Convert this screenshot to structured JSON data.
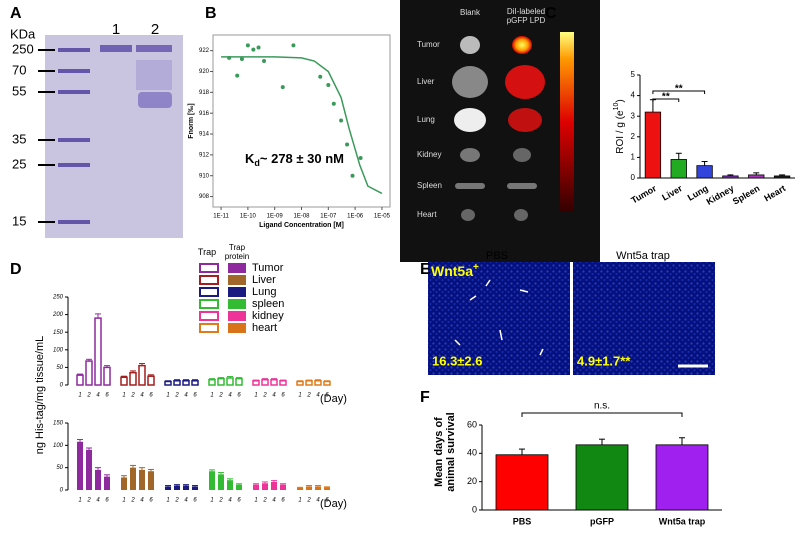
{
  "panel_labels": [
    "A",
    "B",
    "C",
    "D",
    "E",
    "F"
  ],
  "gel": {
    "unit": "KDa",
    "lanes": [
      "1",
      "2"
    ],
    "markers": [
      250,
      70,
      55,
      35,
      25,
      15
    ]
  },
  "imaging": {
    "columns": [
      "Blank",
      "DiI-labeled pGFP LPD"
    ],
    "organs": [
      "Tumor",
      "Liver",
      "Lung",
      "Kidney",
      "Spleen",
      "Heart"
    ]
  },
  "microscopy": {
    "marker": [
      "Wnt5a",
      "+"
    ],
    "groups": [
      "PBS",
      "Wnt5a trap"
    ],
    "values": [
      "16.3±2.6",
      "4.9±1.7**"
    ]
  },
  "d_legend": {
    "headers": [
      "Trap",
      "Trap protein"
    ]
  },
  "chart_data": [
    {
      "type": "scatter",
      "ylabel": "Fnorm [‰]",
      "xlabel": "Ligand Concentration [M]",
      "xlog": true,
      "annotation": [
        "K",
        "d",
        "~ 278 ± 30 nM"
      ],
      "color": "#3a9a5a",
      "xlim": [
        5e-12,
        2e-05
      ],
      "xticks": [
        {
          "value": 1e-11,
          "label": "1E-11"
        },
        {
          "value": 1e-10,
          "label": "1E-10"
        },
        {
          "value": 1e-09,
          "label": "1E-09"
        },
        {
          "value": 1e-08,
          "label": "1E-08"
        },
        {
          "value": 1e-07,
          "label": "1E-07"
        },
        {
          "value": 1e-06,
          "label": "1E-06"
        },
        {
          "value": 1e-05,
          "label": "1E-05"
        }
      ],
      "ylim": [
        907,
        923.5
      ],
      "yticks": [
        908,
        910,
        912,
        914,
        916,
        918,
        920,
        922
      ],
      "x": [
        2e-11,
        4e-11,
        6e-11,
        1e-10,
        1.6e-10,
        2.5e-10,
        4e-10,
        2e-09,
        5e-09,
        5e-08,
        1e-07,
        1.6e-07,
        3e-07,
        5e-07,
        8e-07,
        1.6e-06
      ],
      "values": [
        921.3,
        919.6,
        921.2,
        922.5,
        922.1,
        922.3,
        921.0,
        918.5,
        922.5,
        919.5,
        918.7,
        916.9,
        915.3,
        913.0,
        910.0,
        911.7
      ],
      "fit": {
        "x": [
          1e-11,
          1e-09,
          1e-08,
          3e-08,
          1e-07,
          3e-07,
          6e-07,
          1.5e-06,
          3e-06,
          1e-05
        ],
        "values": [
          921.4,
          921.4,
          921.3,
          921.0,
          920.0,
          917.5,
          914.5,
          911.0,
          909.0,
          908.3
        ]
      }
    },
    {
      "type": "bar",
      "ylabel": [
        "ROI / g (e",
        "10",
        ")"
      ],
      "categories": [
        "Tumor",
        "Liver",
        "Lung",
        "Kidney",
        "Spleen",
        "Heart"
      ],
      "values": [
        3.2,
        0.9,
        0.6,
        0.1,
        0.15,
        0.1
      ],
      "errors": [
        0.6,
        0.3,
        0.2,
        0.05,
        0.1,
        0.05
      ],
      "colors": [
        "#ee1111",
        "#22aa22",
        "#3344dd",
        "#8833cc",
        "#aa33bb",
        "#222222"
      ],
      "ylim": [
        0,
        5
      ],
      "yticks": [
        0,
        1,
        2,
        3,
        4,
        5
      ],
      "annotations": [
        "**",
        "**"
      ]
    },
    {
      "type": "grouped_bar",
      "style": "hollow",
      "ylabel": "ng His-tag/mg tissue/mL",
      "xlabel": "(Day)",
      "categories": [
        "1",
        "2",
        "4",
        "6"
      ],
      "ylim": [
        0,
        250
      ],
      "yticks": [
        0,
        50,
        100,
        150,
        200,
        250
      ],
      "series": [
        {
          "name": "Tumor",
          "color": "#8e2a9e",
          "values": [
            28,
            68,
            190,
            50
          ],
          "errors": [
            3,
            5,
            12,
            5
          ]
        },
        {
          "name": "Liver",
          "color": "#a31e1e",
          "values": [
            22,
            35,
            55,
            25
          ],
          "errors": [
            3,
            5,
            6,
            4
          ]
        },
        {
          "name": "Lung",
          "color": "#1a1a80",
          "values": [
            10,
            12,
            12,
            12
          ],
          "errors": [
            2,
            3,
            3,
            3
          ]
        },
        {
          "name": "spleen",
          "color": "#33bb33",
          "values": [
            15,
            18,
            20,
            18
          ],
          "errors": [
            3,
            3,
            4,
            3
          ]
        },
        {
          "name": "kidney",
          "color": "#ee3399",
          "values": [
            12,
            15,
            15,
            12
          ],
          "errors": [
            2,
            3,
            3,
            2
          ]
        },
        {
          "name": "heart",
          "color": "#e07a1a",
          "values": [
            10,
            12,
            12,
            10
          ],
          "errors": [
            2,
            2,
            3,
            2
          ]
        }
      ]
    },
    {
      "type": "grouped_bar",
      "style": "filled",
      "xlabel": "(Day)",
      "categories": [
        "1",
        "2",
        "4",
        "6"
      ],
      "ylim": [
        0,
        150
      ],
      "yticks": [
        0,
        50,
        100,
        150
      ],
      "series": [
        {
          "color": "#8e2a9e",
          "values": [
            108,
            90,
            45,
            30
          ],
          "errors": [
            5,
            4,
            5,
            4
          ]
        },
        {
          "color": "#a0662a",
          "values": [
            28,
            50,
            45,
            42
          ],
          "errors": [
            4,
            5,
            5,
            4
          ]
        },
        {
          "color": "#1a1a80",
          "values": [
            8,
            10,
            10,
            8
          ],
          "errors": [
            2,
            2,
            2,
            2
          ]
        },
        {
          "color": "#33bb33",
          "values": [
            42,
            35,
            22,
            12
          ],
          "errors": [
            3,
            4,
            3,
            2
          ]
        },
        {
          "color": "#ee3399",
          "values": [
            12,
            15,
            18,
            12
          ],
          "errors": [
            2,
            3,
            3,
            2
          ]
        },
        {
          "color": "#d9731a",
          "values": [
            5,
            8,
            8,
            6
          ],
          "errors": [
            1,
            2,
            2,
            1
          ]
        }
      ]
    },
    {
      "type": "bar",
      "ylabel": "Mean days of animal survival",
      "categories": [
        "PBS",
        "pGFP",
        "Wnt5a trap"
      ],
      "values": [
        39,
        46,
        46
      ],
      "errors": [
        4,
        4,
        5
      ],
      "colors": [
        "#ff0000",
        "#118811",
        "#a020f0"
      ],
      "ylim": [
        0,
        60
      ],
      "yticks": [
        0,
        20,
        40,
        60
      ],
      "annotations": [
        "n.s."
      ]
    }
  ]
}
